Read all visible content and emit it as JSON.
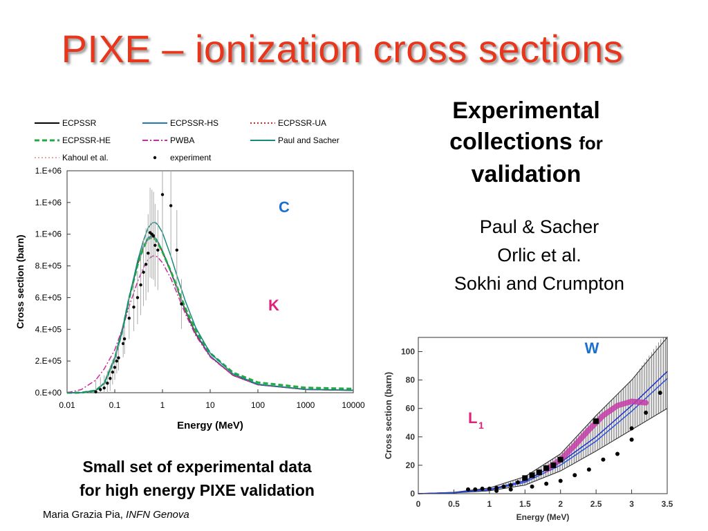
{
  "slide": {
    "title": "PIXE – ionization cross sections",
    "right_heading": {
      "line1": "Experimental",
      "line2_main": "collections",
      "line2_small": "for",
      "line3": "validation"
    },
    "references": [
      "Paul & Sacher",
      "Orlic et al.",
      "Sokhi and Crumpton"
    ],
    "caption": [
      "Small set of experimental data",
      "for high energy PIXE validation"
    ],
    "footer": {
      "author": "Maria Grazia Pia, ",
      "institute": "INFN Genova"
    }
  },
  "chart_data": [
    {
      "type": "line",
      "x_scale": "log",
      "xlabel": "Energy (MeV)",
      "ylabel": "Cross section (barn)",
      "xlim": [
        0.01,
        10000
      ],
      "ylim": [
        0,
        1400000
      ],
      "x_tick_labels": [
        "0.01",
        "0.1",
        "1",
        "10",
        "100",
        "1000",
        "10000"
      ],
      "y_tick_labels": [
        "0.E+00",
        "2.E+05",
        "4.E+05",
        "6.E+05",
        "8.E+05",
        "1.E+06",
        "1.E+06",
        "1.E+06"
      ],
      "annotations": {
        "element": "C",
        "shell": "K"
      },
      "element_color": "#1a6fd0",
      "shell_color": "#e0207a",
      "legend": [
        {
          "name": "ECPSSR",
          "color": "#000000",
          "style": "solid"
        },
        {
          "name": "ECPSSR-HS",
          "color": "#1f77b4",
          "style": "solid"
        },
        {
          "name": "ECPSSR-UA",
          "color": "#e02020",
          "style": "dotted"
        },
        {
          "name": "ECPSSR-HE",
          "color": "#22aa44",
          "style": "dashed"
        },
        {
          "name": "PWBA",
          "color": "#cc2a9c",
          "style": "dashdot"
        },
        {
          "name": "Paul and Sacher",
          "color": "#138a7a",
          "style": "solid"
        },
        {
          "name": "Kahoul et al.",
          "color": "#f4a0a0",
          "style": "dotted"
        },
        {
          "name": "experiment",
          "color": "#000000",
          "style": "marker"
        }
      ],
      "series": [
        {
          "name": "ECPSSR",
          "x": [
            0.01,
            0.02,
            0.04,
            0.06,
            0.1,
            0.15,
            0.2,
            0.3,
            0.4,
            0.5,
            0.6,
            0.7,
            0.8,
            1,
            1.5,
            2,
            3,
            5,
            10,
            30,
            100,
            1000,
            10000
          ],
          "y": [
            0,
            500,
            15000,
            60000,
            220000,
            420000,
            600000,
            810000,
            920000,
            975000,
            985000,
            975000,
            950000,
            890000,
            760000,
            660000,
            520000,
            370000,
            230000,
            110000,
            50000,
            20000,
            15000
          ]
        },
        {
          "name": "ECPSSR-HS",
          "x": [
            0.01,
            0.02,
            0.04,
            0.06,
            0.1,
            0.15,
            0.2,
            0.3,
            0.4,
            0.5,
            0.6,
            0.7,
            0.8,
            1,
            1.5,
            2,
            3,
            5,
            10,
            30,
            100,
            1000,
            10000
          ],
          "y": [
            0,
            500,
            15000,
            62000,
            225000,
            425000,
            605000,
            815000,
            925000,
            980000,
            990000,
            980000,
            955000,
            895000,
            765000,
            665000,
            525000,
            375000,
            232000,
            112000,
            51000,
            21000,
            15000
          ]
        },
        {
          "name": "ECPSSR-UA",
          "x": [
            0.01,
            0.02,
            0.04,
            0.06,
            0.1,
            0.15,
            0.2,
            0.3,
            0.4,
            0.5,
            0.6,
            0.7,
            0.8,
            1,
            1.5,
            2,
            3,
            5,
            10,
            30,
            100,
            1000,
            10000
          ],
          "y": [
            0,
            500,
            14000,
            58000,
            215000,
            415000,
            595000,
            805000,
            915000,
            970000,
            980000,
            970000,
            945000,
            885000,
            758000,
            658000,
            518000,
            368000,
            229000,
            111000,
            52000,
            22000,
            16000
          ]
        },
        {
          "name": "ECPSSR-HE",
          "x": [
            0.01,
            0.02,
            0.04,
            0.06,
            0.1,
            0.15,
            0.2,
            0.3,
            0.4,
            0.5,
            0.6,
            0.7,
            0.8,
            1,
            1.5,
            2,
            3,
            5,
            10,
            30,
            100,
            1000,
            10000
          ],
          "y": [
            0,
            500,
            14000,
            58000,
            215000,
            415000,
            595000,
            805000,
            915000,
            970000,
            978000,
            968000,
            945000,
            888000,
            765000,
            670000,
            535000,
            390000,
            250000,
            128000,
            65000,
            32000,
            25000
          ]
        },
        {
          "name": "PWBA",
          "x": [
            0.01,
            0.02,
            0.04,
            0.06,
            0.1,
            0.15,
            0.2,
            0.3,
            0.4,
            0.5,
            0.6,
            0.7,
            0.8,
            1,
            1.5,
            2,
            3,
            5,
            10,
            30,
            100,
            1000,
            10000
          ],
          "y": [
            0,
            20000,
            80000,
            150000,
            270000,
            420000,
            545000,
            700000,
            790000,
            840000,
            860000,
            865000,
            855000,
            820000,
            720000,
            630000,
            500000,
            360000,
            225000,
            110000,
            50000,
            20000,
            15000
          ]
        },
        {
          "name": "Paul and Sacher",
          "x": [
            0.01,
            0.02,
            0.04,
            0.06,
            0.1,
            0.15,
            0.2,
            0.3,
            0.4,
            0.5,
            0.6,
            0.7,
            0.8,
            1,
            1.5,
            2,
            3,
            5,
            10,
            30,
            100,
            1000,
            10000
          ],
          "y": [
            0,
            500,
            14000,
            58000,
            210000,
            410000,
            595000,
            830000,
            960000,
            1040000,
            1070000,
            1075000,
            1060000,
            1010000,
            860000,
            740000,
            580000,
            410000,
            250000,
            120000,
            54000,
            22000,
            16000
          ]
        },
        {
          "name": "experiment",
          "x": [
            0.04,
            0.05,
            0.06,
            0.07,
            0.08,
            0.09,
            0.1,
            0.11,
            0.12,
            0.15,
            0.16,
            0.2,
            0.25,
            0.3,
            0.35,
            0.4,
            0.45,
            0.5,
            0.55,
            0.6,
            0.65,
            0.7,
            0.8,
            1.0,
            1.5,
            2.0,
            2.5
          ],
          "y": [
            5000,
            20000,
            30000,
            60000,
            90000,
            130000,
            160000,
            200000,
            220000,
            310000,
            340000,
            470000,
            540000,
            600000,
            680000,
            760000,
            810000,
            880000,
            1010000,
            1000000,
            990000,
            930000,
            900000,
            1250000,
            1180000,
            900000,
            560000
          ]
        }
      ]
    },
    {
      "type": "line",
      "xlabel": "Energy (MeV)",
      "ylabel": "Cross section (barn)",
      "xlim": [
        0,
        3.5
      ],
      "ylim": [
        0,
        110
      ],
      "x_tick_labels": [
        "0",
        "0.5",
        "1",
        "1.5",
        "2",
        "2.5",
        "3",
        "3.5"
      ],
      "y_tick_labels": [
        "0",
        "20",
        "40",
        "60",
        "80",
        "100"
      ],
      "annotations": {
        "element": "W",
        "shell": "L",
        "shell_subscript": "1"
      },
      "element_color": "#1a6fd0",
      "shell_color": "#e0207a",
      "band": {
        "x": [
          0.0,
          0.5,
          1.0,
          1.5,
          2.0,
          2.5,
          3.0,
          3.5
        ],
        "upper": [
          0,
          1,
          4,
          12,
          28,
          55,
          80,
          115
        ],
        "lower": [
          0,
          0.5,
          2,
          6,
          16,
          30,
          45,
          60
        ]
      },
      "series": [
        {
          "name": "",
          "color": "#1c2fd0",
          "x": [
            0.0,
            0.5,
            1.0,
            1.5,
            2.0,
            2.5,
            3.0,
            3.5
          ],
          "y": [
            0,
            0.8,
            3,
            9,
            22,
            40,
            62,
            86
          ]
        },
        {
          "name": "",
          "color": "#2b4fd8",
          "x": [
            0.0,
            0.5,
            1.0,
            1.5,
            2.0,
            2.5,
            3.0,
            3.5
          ],
          "y": [
            0,
            0.7,
            2.6,
            8,
            20,
            37,
            58,
            81
          ]
        },
        {
          "name": "",
          "color": "#c43ca8",
          "x": [
            1.8,
            2.0,
            2.2,
            2.4,
            2.6,
            2.8,
            3.0,
            3.2
          ],
          "y": [
            17,
            24,
            34,
            45,
            55,
            62,
            65,
            64
          ]
        },
        {
          "name": "",
          "color": "#000000",
          "x": [
            0.7,
            0.8,
            0.9,
            1.0,
            1.1,
            1.2,
            1.3,
            1.4,
            1.5,
            1.6,
            1.7,
            1.8,
            1.9,
            2.0,
            2.5,
            1.1,
            1.3,
            1.6,
            1.8,
            2.0,
            2.2,
            2.4,
            2.6,
            2.8,
            3.0,
            3.0,
            3.2,
            3.4
          ],
          "y": [
            3,
            3,
            3.5,
            3.5,
            4,
            5,
            6,
            8,
            11,
            13,
            15,
            18,
            20,
            24,
            51,
            2,
            3,
            5,
            7,
            9,
            13,
            17,
            24,
            28,
            38,
            46,
            57,
            71
          ]
        }
      ]
    }
  ]
}
